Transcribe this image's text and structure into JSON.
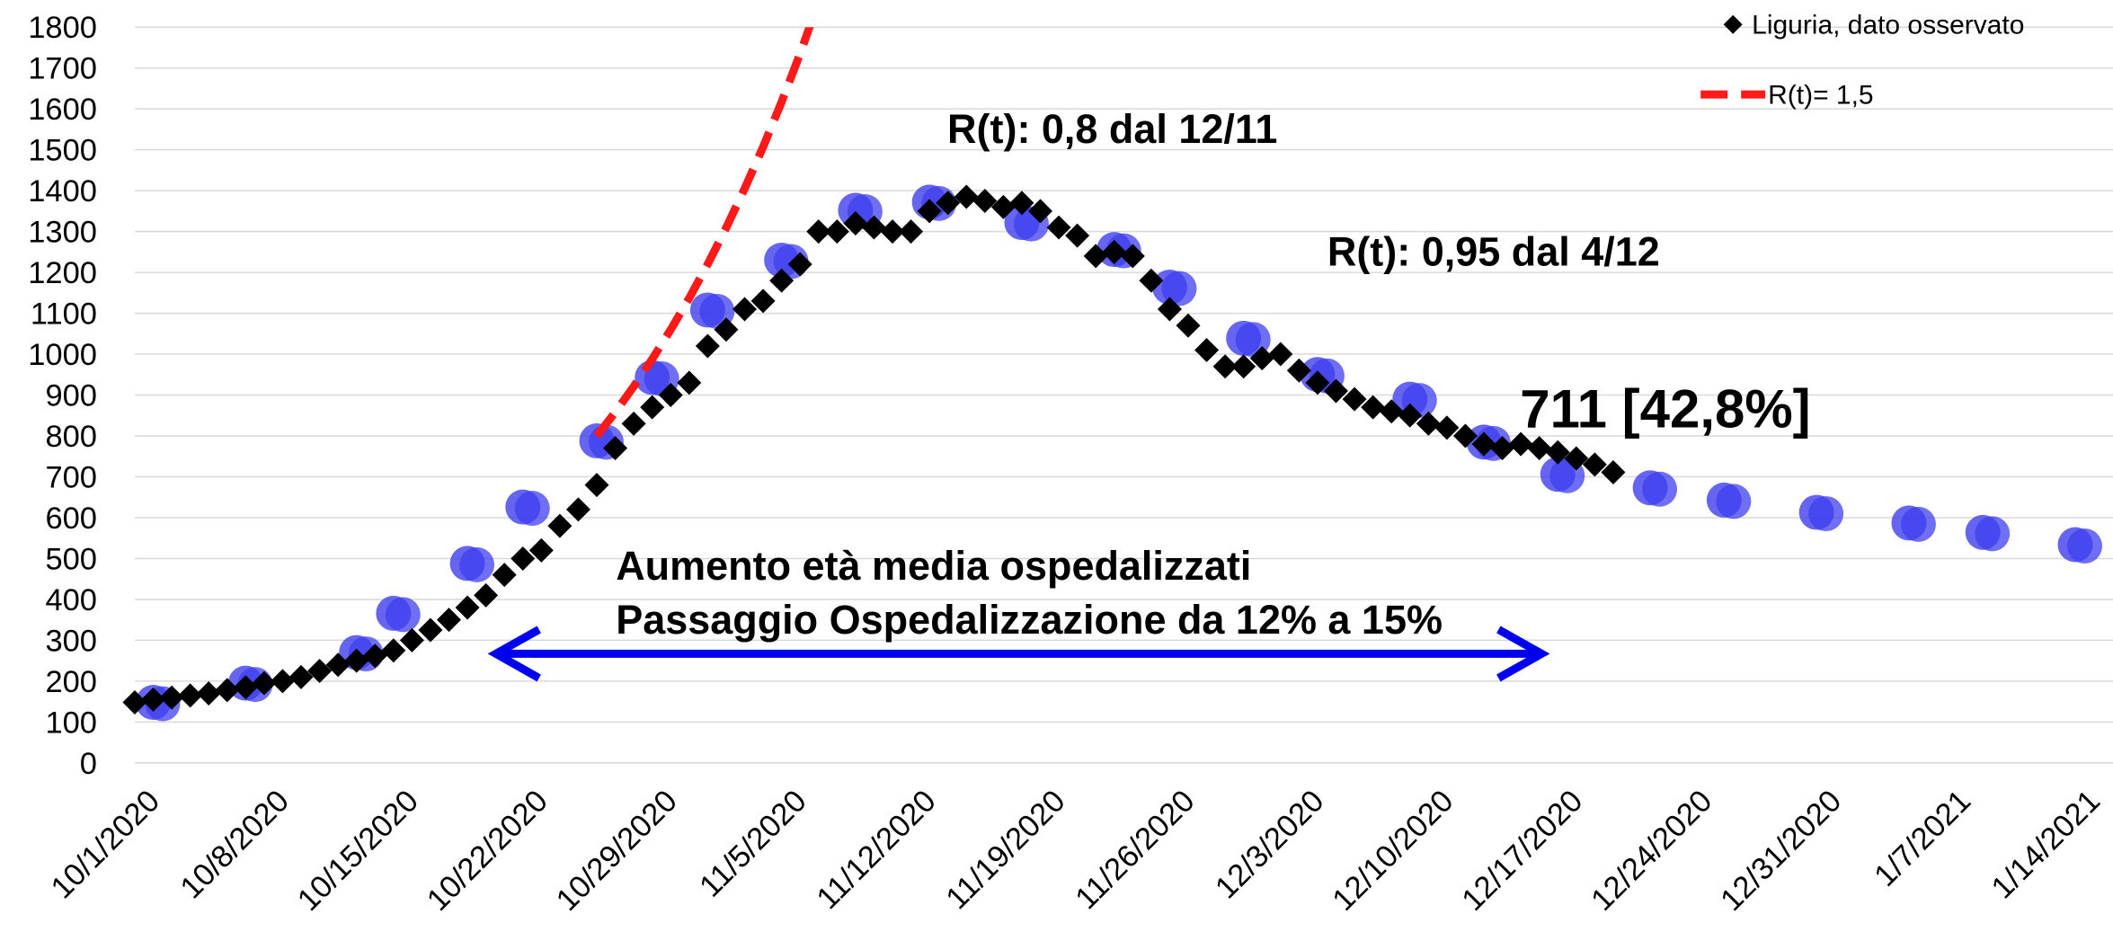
{
  "chart_data": {
    "type": "line",
    "categories": [
      "10/1/2020",
      null,
      null,
      null,
      null,
      null,
      null,
      "10/8/2020",
      null,
      null,
      null,
      null,
      null,
      null,
      "10/15/2020",
      null,
      null,
      null,
      null,
      null,
      null,
      "10/22/2020",
      null,
      null,
      null,
      null,
      null,
      null,
      "10/29/2020",
      null,
      null,
      null,
      null,
      null,
      null,
      "11/5/2020",
      null,
      null,
      null,
      null,
      null,
      null,
      "11/12/2020",
      null,
      null,
      null,
      null,
      null,
      null,
      "11/19/2020",
      null,
      null,
      null,
      null,
      null,
      null,
      "11/26/2020",
      null,
      null,
      null,
      null,
      null,
      null,
      "12/3/2020",
      null,
      null,
      null,
      null,
      null,
      null,
      "12/10/2020",
      null,
      null,
      null,
      null,
      null,
      null,
      "12/17/2020",
      null,
      null,
      null,
      null,
      null,
      null,
      "12/24/2020",
      null,
      null,
      null,
      null,
      null,
      null,
      "12/31/2020",
      null,
      null,
      null,
      null,
      null,
      null,
      "1/7/2021",
      null,
      null,
      null,
      null,
      null,
      null,
      "1/14/2021"
    ],
    "series": [
      {
        "color": "#3f3fef",
        "style": "circles",
        "values": [
          null,
          148,
          null,
          null,
          null,
          null,
          195,
          null,
          null,
          null,
          null,
          null,
          270,
          null,
          366,
          null,
          null,
          null,
          488,
          null,
          null,
          626,
          null,
          null,
          null,
          788,
          null,
          null,
          943,
          null,
          null,
          1108,
          null,
          null,
          null,
          1230,
          null,
          null,
          null,
          1352,
          null,
          null,
          null,
          1372,
          null,
          null,
          null,
          null,
          1322,
          null,
          null,
          null,
          null,
          1256,
          null,
          null,
          1164,
          null,
          null,
          null,
          1039,
          null,
          null,
          null,
          950,
          null,
          null,
          null,
          null,
          890,
          null,
          null,
          null,
          785,
          null,
          null,
          null,
          706,
          null,
          null,
          null,
          null,
          673,
          null,
          null,
          null,
          643,
          null,
          null,
          null,
          null,
          613,
          null,
          null,
          null,
          null,
          587,
          null,
          null,
          null,
          564,
          null,
          null,
          null,
          null,
          534
        ]
      },
      {
        "name": "Liguria, dato osservato",
        "color": "#000000",
        "style": "diamonds",
        "values": [
          148,
          155,
          160,
          165,
          170,
          178,
          185,
          195,
          200,
          210,
          225,
          240,
          250,
          262,
          275,
          300,
          325,
          350,
          380,
          410,
          460,
          500,
          520,
          580,
          620,
          680,
          770,
          830,
          870,
          900,
          930,
          1020,
          1060,
          1110,
          1130,
          1180,
          1220,
          1300,
          1300,
          1320,
          1310,
          1300,
          1300,
          1350,
          1370,
          1385,
          1375,
          1360,
          1370,
          1350,
          1310,
          1290,
          1240,
          1250,
          1240,
          1180,
          1110,
          1070,
          1010,
          970,
          970,
          990,
          1000,
          960,
          930,
          910,
          890,
          870,
          860,
          850,
          830,
          820,
          800,
          780,
          770,
          780,
          770,
          760,
          745,
          730,
          711,
          null,
          null,
          null,
          null,
          null,
          null,
          null,
          null,
          null,
          null,
          null,
          null,
          null,
          null,
          null,
          null,
          null,
          null,
          null,
          null,
          null,
          null,
          null,
          null,
          null
        ]
      },
      {
        "name": "R(t)= 1,5",
        "color": "#ff1a1a",
        "style": "dashed",
        "values": [
          null,
          null,
          null,
          null,
          null,
          null,
          null,
          null,
          null,
          null,
          null,
          null,
          null,
          null,
          null,
          null,
          null,
          null,
          null,
          null,
          null,
          null,
          null,
          null,
          null,
          800,
          858,
          921,
          988,
          1060,
          1137,
          1220,
          1309,
          1405,
          1507,
          1617,
          1735,
          1862,
          null,
          null,
          null,
          null,
          null,
          null,
          null,
          null,
          null,
          null,
          null,
          null,
          null,
          null,
          null,
          null,
          null,
          null,
          null,
          null,
          null,
          null,
          null,
          null,
          null,
          null,
          null,
          null,
          null,
          null,
          null,
          null,
          null,
          null,
          null,
          null,
          null,
          null,
          null,
          null,
          null,
          null,
          null,
          null,
          null,
          null,
          null,
          null,
          null,
          null,
          null,
          null,
          null,
          null,
          null,
          null,
          null,
          null,
          null,
          null,
          null,
          null,
          null,
          null,
          null,
          null,
          null,
          null
        ]
      }
    ],
    "ylim": [
      0,
      1800
    ],
    "yticks": [
      0,
      100,
      200,
      300,
      400,
      500,
      600,
      700,
      800,
      900,
      1000,
      1100,
      1200,
      1300,
      1400,
      1500,
      1600,
      1700,
      1800
    ],
    "grid": true,
    "legend": "top-right",
    "annotations": [
      "R(t): 0,8 dal 12/11",
      "R(t): 0,95 dal 4/12",
      "711 [42,8%]",
      "Aumento età media ospedalizzati",
      "Passaggio Ospedalizzazione da 12% a 15%"
    ]
  }
}
